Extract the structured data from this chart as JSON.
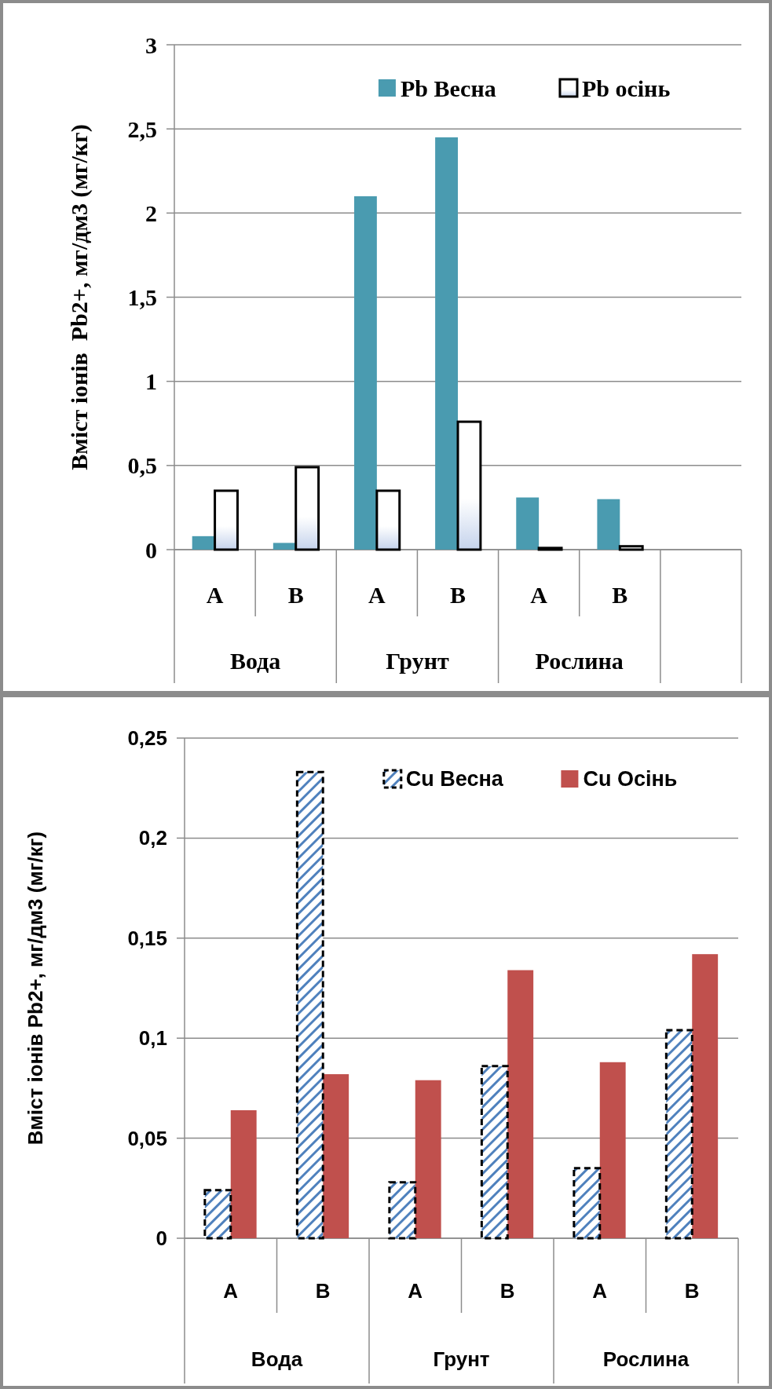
{
  "chart_data": [
    {
      "type": "bar",
      "ylabel": "Вміст іонів  Pb2+, мг/дм3 (мг/кг)",
      "categories": [
        "A",
        "B",
        "A",
        "B",
        "A",
        "B",
        null
      ],
      "annotations": [
        "Вода",
        "Грунт",
        "Рослина"
      ],
      "series": [
        {
          "name": "Pb Весна",
          "color": "#4a9bb0",
          "values": [
            0.08,
            0.04,
            2.1,
            2.45,
            0.31,
            0.3,
            null
          ]
        },
        {
          "name": "Pb осінь",
          "color": "#c5d3ec",
          "line_style": "solid",
          "values": [
            0.35,
            0.49,
            0.35,
            0.76,
            0.01,
            0.02,
            null
          ]
        }
      ],
      "ylim": [
        0,
        3
      ],
      "yticks": [
        0,
        {
          "value": 0.5,
          "label": "0,5"
        },
        1,
        {
          "value": 1.5,
          "label": "1,5"
        },
        2,
        {
          "value": 2.5,
          "label": "2,5"
        },
        3
      ],
      "grid": "y",
      "legend": "top right"
    },
    {
      "type": "bar",
      "ylabel": "Вміст іонів Pb2+, мг/дм3 (мг/кг)",
      "categories": [
        "A",
        "B",
        "A",
        "B",
        "A",
        "B"
      ],
      "annotations": [
        "Вода",
        "Грунт",
        "Рослина"
      ],
      "series": [
        {
          "name": "Cu Весна",
          "color": "#4f81bd",
          "line_style": "dashed",
          "values": [
            0.024,
            0.233,
            0.028,
            0.086,
            0.035,
            0.104
          ]
        },
        {
          "name": "Cu Осінь",
          "color": "#c0504d",
          "values": [
            0.064,
            0.082,
            0.079,
            0.134,
            0.088,
            0.142
          ]
        }
      ],
      "ylim": [
        0,
        0.25
      ],
      "yticks": [
        0,
        {
          "value": 0.05,
          "label": "0,05"
        },
        {
          "value": 0.1,
          "label": "0,1"
        },
        {
          "value": 0.15,
          "label": "0,15"
        },
        {
          "value": 0.2,
          "label": "0,2"
        },
        {
          "value": 0.25,
          "label": "0,25"
        }
      ],
      "grid": "y",
      "legend": "top right"
    }
  ]
}
